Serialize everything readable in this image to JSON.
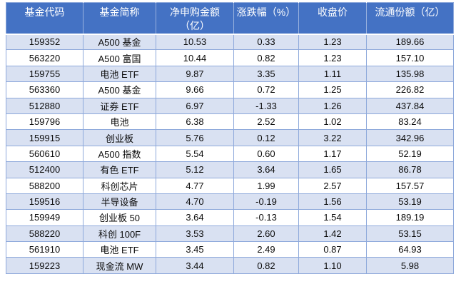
{
  "colors": {
    "header_bg": "#4472C4",
    "header_text": "#FFFFFF",
    "band_row_bg": "#D9E1F2",
    "white_row_bg": "#FFFFFF",
    "border": "#8EA9DB",
    "body_text": "#0B0B0B"
  },
  "table": {
    "columns": [
      {
        "label": "基金代码"
      },
      {
        "label": "基金简称"
      },
      {
        "label": "净申购金额\n（亿）"
      },
      {
        "label": "涨跌幅（%）"
      },
      {
        "label": "收盘价"
      },
      {
        "label": "流通份额（亿）"
      }
    ]
  },
  "chart_data": {
    "type": "table",
    "title": "",
    "columns": [
      "基金代码",
      "基金简称",
      "净申购金额（亿）",
      "涨跌幅（%）",
      "收盘价",
      "流通份额（亿）"
    ],
    "rows": [
      [
        "159352",
        "A500 基金",
        10.53,
        0.33,
        1.23,
        189.66
      ],
      [
        "563220",
        "A500 富国",
        10.44,
        0.82,
        1.23,
        157.1
      ],
      [
        "159755",
        "电池 ETF",
        9.87,
        3.35,
        1.11,
        135.98
      ],
      [
        "563360",
        "A500 基金",
        9.66,
        0.72,
        1.25,
        226.82
      ],
      [
        "512880",
        "证券 ETF",
        6.97,
        -1.33,
        1.26,
        437.84
      ],
      [
        "159796",
        "电池",
        6.38,
        2.52,
        1.02,
        83.24
      ],
      [
        "159915",
        "创业板",
        5.76,
        0.12,
        3.22,
        342.96
      ],
      [
        "560610",
        "A500 指数",
        5.54,
        0.6,
        1.17,
        52.19
      ],
      [
        "512400",
        "有色 ETF",
        5.12,
        3.64,
        1.65,
        86.78
      ],
      [
        "588200",
        "科创芯片",
        4.77,
        1.99,
        2.57,
        157.57
      ],
      [
        "159516",
        "半导设备",
        4.7,
        -0.19,
        1.56,
        53.19
      ],
      [
        "159949",
        "创业板 50",
        3.64,
        -0.13,
        1.54,
        189.19
      ],
      [
        "588220",
        "科创 100F",
        3.53,
        2.6,
        1.42,
        53.15
      ],
      [
        "561910",
        "电池 ETF",
        3.45,
        2.49,
        0.87,
        64.93
      ],
      [
        "159223",
        "现金流 MW",
        3.44,
        0.82,
        1.1,
        5.98
      ]
    ]
  }
}
